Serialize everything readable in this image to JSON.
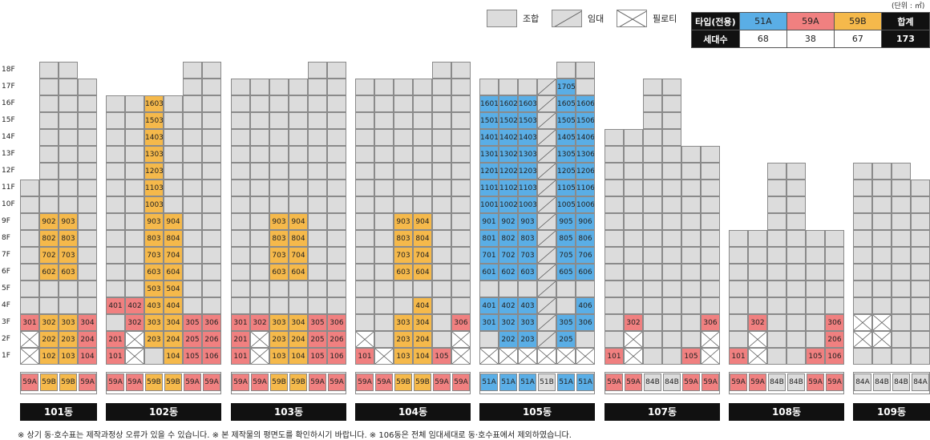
{
  "unit": "(단위 : ㎡)",
  "legend": {
    "union": "조합",
    "rental": "임대",
    "piloti": "필로티"
  },
  "summary": {
    "type_label": "타입(전용)",
    "count_label": "세대수",
    "total_label": "합계",
    "types": [
      {
        "name": "51A",
        "count": "68",
        "color": "#5aaee6"
      },
      {
        "name": "59A",
        "count": "38",
        "color": "#f08080"
      },
      {
        "name": "59B",
        "count": "67",
        "color": "#f5b94b"
      }
    ],
    "total": "173"
  },
  "floors": [
    "18F",
    "17F",
    "16F",
    "15F",
    "14F",
    "13F",
    "12F",
    "11F",
    "10F",
    "9F",
    "8F",
    "7F",
    "6F",
    "5F",
    "4F",
    "3F",
    "2F",
    "1F"
  ],
  "buildings": [
    {
      "name": "101동",
      "types": [
        "59A",
        "59B",
        "59B",
        "59A"
      ],
      "type_colors": [
        "b",
        "c",
        "c",
        "b"
      ],
      "heights": [
        11,
        18,
        18,
        17
      ],
      "units": {
        "3-1": [
          "301",
          "b"
        ],
        "3-2": [
          "302",
          "c"
        ],
        "3-3": [
          "303",
          "c"
        ],
        "3-4": [
          "304",
          "b"
        ],
        "2-2": [
          "202",
          "c"
        ],
        "2-3": [
          "203",
          "c"
        ],
        "2-4": [
          "204",
          "b"
        ],
        "1-2": [
          "102",
          "c"
        ],
        "1-3": [
          "103",
          "c"
        ],
        "1-4": [
          "104",
          "b"
        ],
        "9-2": [
          "902",
          "c"
        ],
        "9-3": [
          "903",
          "c"
        ],
        "8-2": [
          "802",
          "c"
        ],
        "8-3": [
          "803",
          "c"
        ],
        "7-2": [
          "702",
          "c"
        ],
        "7-3": [
          "703",
          "c"
        ],
        "6-2": [
          "602",
          "c"
        ],
        "6-3": [
          "603",
          "c"
        ]
      },
      "piloti": [
        "2-1",
        "1-1"
      ],
      "rental": []
    },
    {
      "name": "102동",
      "types": [
        "59A",
        "59A",
        "59B",
        "59B",
        "59A",
        "59A"
      ],
      "type_colors": [
        "b",
        "b",
        "c",
        "c",
        "b",
        "b"
      ],
      "heights": [
        16,
        16,
        16,
        16,
        18,
        18
      ],
      "units": {
        "16-3": [
          "1603",
          "c"
        ],
        "15-3": [
          "1503",
          "c"
        ],
        "14-3": [
          "1403",
          "c"
        ],
        "13-3": [
          "1303",
          "c"
        ],
        "12-3": [
          "1203",
          "c"
        ],
        "11-3": [
          "1103",
          "c"
        ],
        "10-3": [
          "1003",
          "c"
        ],
        "9-3": [
          "903",
          "c"
        ],
        "9-4": [
          "904",
          "c"
        ],
        "8-3": [
          "803",
          "c"
        ],
        "8-4": [
          "804",
          "c"
        ],
        "7-3": [
          "703",
          "c"
        ],
        "7-4": [
          "704",
          "c"
        ],
        "6-3": [
          "603",
          "c"
        ],
        "6-4": [
          "604",
          "c"
        ],
        "5-3": [
          "503",
          "c"
        ],
        "5-4": [
          "504",
          "c"
        ],
        "4-1": [
          "401",
          "b"
        ],
        "4-2": [
          "402",
          "b"
        ],
        "4-3": [
          "403",
          "c"
        ],
        "4-4": [
          "404",
          "c"
        ],
        "3-2": [
          "302",
          "b"
        ],
        "3-3": [
          "303",
          "c"
        ],
        "3-4": [
          "304",
          "c"
        ],
        "3-5": [
          "305",
          "b"
        ],
        "3-6": [
          "306",
          "b"
        ],
        "2-1": [
          "201",
          "b"
        ],
        "2-3": [
          "203",
          "c"
        ],
        "2-4": [
          "204",
          "c"
        ],
        "2-5": [
          "205",
          "b"
        ],
        "2-6": [
          "206",
          "b"
        ],
        "1-1": [
          "101",
          "b"
        ],
        "1-4": [
          "104",
          "c"
        ],
        "1-5": [
          "105",
          "b"
        ],
        "1-6": [
          "106",
          "b"
        ]
      },
      "piloti": [
        "2-2",
        "1-2"
      ],
      "rental": []
    },
    {
      "name": "103동",
      "types": [
        "59A",
        "59A",
        "59B",
        "59B",
        "59A",
        "59A"
      ],
      "type_colors": [
        "b",
        "b",
        "c",
        "c",
        "b",
        "b"
      ],
      "heights": [
        17,
        17,
        17,
        17,
        18,
        18
      ],
      "units": {
        "9-3": [
          "903",
          "c"
        ],
        "9-4": [
          "904",
          "c"
        ],
        "8-3": [
          "803",
          "c"
        ],
        "8-4": [
          "804",
          "c"
        ],
        "7-3": [
          "703",
          "c"
        ],
        "7-4": [
          "704",
          "c"
        ],
        "6-3": [
          "603",
          "c"
        ],
        "6-4": [
          "604",
          "c"
        ],
        "3-1": [
          "301",
          "b"
        ],
        "3-2": [
          "302",
          "b"
        ],
        "3-3": [
          "303",
          "c"
        ],
        "3-4": [
          "304",
          "c"
        ],
        "3-5": [
          "305",
          "b"
        ],
        "3-6": [
          "306",
          "b"
        ],
        "2-1": [
          "201",
          "b"
        ],
        "2-3": [
          "203",
          "c"
        ],
        "2-4": [
          "204",
          "c"
        ],
        "2-5": [
          "205",
          "b"
        ],
        "2-6": [
          "206",
          "b"
        ],
        "1-1": [
          "101",
          "b"
        ],
        "1-3": [
          "103",
          "c"
        ],
        "1-4": [
          "104",
          "c"
        ],
        "1-5": [
          "105",
          "b"
        ],
        "1-6": [
          "106",
          "b"
        ]
      },
      "piloti": [
        "2-2",
        "1-2"
      ],
      "rental": []
    },
    {
      "name": "104동",
      "types": [
        "59A",
        "59A",
        "59B",
        "59B",
        "59A",
        "59A"
      ],
      "type_colors": [
        "b",
        "b",
        "c",
        "c",
        "b",
        "b"
      ],
      "heights": [
        17,
        17,
        17,
        17,
        18,
        18
      ],
      "units": {
        "9-3": [
          "903",
          "c"
        ],
        "9-4": [
          "904",
          "c"
        ],
        "8-3": [
          "803",
          "c"
        ],
        "8-4": [
          "804",
          "c"
        ],
        "7-3": [
          "703",
          "c"
        ],
        "7-4": [
          "704",
          "c"
        ],
        "6-3": [
          "603",
          "c"
        ],
        "6-4": [
          "604",
          "c"
        ],
        "4-4": [
          "404",
          "c"
        ],
        "3-3": [
          "303",
          "c"
        ],
        "3-4": [
          "304",
          "c"
        ],
        "3-6": [
          "306",
          "b"
        ],
        "2-3": [
          "203",
          "c"
        ],
        "2-4": [
          "204",
          "c"
        ],
        "1-1": [
          "101",
          "b"
        ],
        "1-3": [
          "103",
          "c"
        ],
        "1-4": [
          "104",
          "c"
        ],
        "1-5": [
          "105",
          "b"
        ]
      },
      "piloti": [
        "2-1",
        "2-6",
        "1-2",
        "1-6"
      ],
      "rental": []
    },
    {
      "name": "105동",
      "types": [
        "51A",
        "51A",
        "51A",
        "51B",
        "51A",
        "51A"
      ],
      "type_colors": [
        "a",
        "a",
        "a",
        "g",
        "a",
        "a"
      ],
      "heights": [
        17,
        17,
        17,
        17,
        18,
        18
      ],
      "units": {
        "17-5": [
          "1705",
          "a"
        ],
        "16-1": [
          "1601",
          "a"
        ],
        "16-2": [
          "1602",
          "a"
        ],
        "16-3": [
          "1603",
          "a"
        ],
        "16-5": [
          "1605",
          "a"
        ],
        "16-6": [
          "1606",
          "a"
        ],
        "15-1": [
          "1501",
          "a"
        ],
        "15-2": [
          "1502",
          "a"
        ],
        "15-3": [
          "1503",
          "a"
        ],
        "15-5": [
          "1505",
          "a"
        ],
        "15-6": [
          "1506",
          "a"
        ],
        "14-1": [
          "1401",
          "a"
        ],
        "14-2": [
          "1402",
          "a"
        ],
        "14-3": [
          "1403",
          "a"
        ],
        "14-5": [
          "1405",
          "a"
        ],
        "14-6": [
          "1406",
          "a"
        ],
        "13-1": [
          "1301",
          "a"
        ],
        "13-2": [
          "1302",
          "a"
        ],
        "13-3": [
          "1303",
          "a"
        ],
        "13-5": [
          "1305",
          "a"
        ],
        "13-6": [
          "1306",
          "a"
        ],
        "12-1": [
          "1201",
          "a"
        ],
        "12-2": [
          "1202",
          "a"
        ],
        "12-3": [
          "1203",
          "a"
        ],
        "12-5": [
          "1205",
          "a"
        ],
        "12-6": [
          "1206",
          "a"
        ],
        "11-1": [
          "1101",
          "a"
        ],
        "11-2": [
          "1102",
          "a"
        ],
        "11-3": [
          "1103",
          "a"
        ],
        "11-5": [
          "1105",
          "a"
        ],
        "11-6": [
          "1106",
          "a"
        ],
        "10-1": [
          "1001",
          "a"
        ],
        "10-2": [
          "1002",
          "a"
        ],
        "10-3": [
          "1003",
          "a"
        ],
        "10-5": [
          "1005",
          "a"
        ],
        "10-6": [
          "1006",
          "a"
        ],
        "9-1": [
          "901",
          "a"
        ],
        "9-2": [
          "902",
          "a"
        ],
        "9-3": [
          "903",
          "a"
        ],
        "9-5": [
          "905",
          "a"
        ],
        "9-6": [
          "906",
          "a"
        ],
        "8-1": [
          "801",
          "a"
        ],
        "8-2": [
          "802",
          "a"
        ],
        "8-3": [
          "803",
          "a"
        ],
        "8-5": [
          "805",
          "a"
        ],
        "8-6": [
          "806",
          "a"
        ],
        "7-1": [
          "701",
          "a"
        ],
        "7-2": [
          "702",
          "a"
        ],
        "7-3": [
          "703",
          "a"
        ],
        "7-5": [
          "705",
          "a"
        ],
        "7-6": [
          "706",
          "a"
        ],
        "6-1": [
          "601",
          "a"
        ],
        "6-2": [
          "602",
          "a"
        ],
        "6-3": [
          "603",
          "a"
        ],
        "6-5": [
          "605",
          "a"
        ],
        "6-6": [
          "606",
          "a"
        ],
        "4-1": [
          "401",
          "a"
        ],
        "4-2": [
          "402",
          "a"
        ],
        "4-3": [
          "403",
          "a"
        ],
        "4-6": [
          "406",
          "a"
        ],
        "3-1": [
          "301",
          "a"
        ],
        "3-2": [
          "302",
          "a"
        ],
        "3-3": [
          "303",
          "a"
        ],
        "3-5": [
          "305",
          "a"
        ],
        "3-6": [
          "306",
          "a"
        ],
        "2-2": [
          "202",
          "a"
        ],
        "2-3": [
          "203",
          "a"
        ],
        "2-5": [
          "205",
          "a"
        ]
      },
      "piloti": [
        "1-1",
        "1-2",
        "1-3",
        "1-4",
        "1-5",
        "1-6"
      ],
      "rental": [
        "17-4",
        "16-4",
        "15-4",
        "14-4",
        "13-4",
        "12-4",
        "11-4",
        "10-4",
        "9-4",
        "8-4",
        "7-4",
        "6-4",
        "5-4",
        "4-4",
        "3-4",
        "2-4"
      ]
    },
    {
      "name": "107동",
      "types": [
        "59A",
        "59A",
        "84B",
        "84B",
        "59A",
        "59A"
      ],
      "type_colors": [
        "b",
        "b",
        "g",
        "g",
        "b",
        "b"
      ],
      "heights": [
        14,
        14,
        17,
        17,
        13,
        13
      ],
      "units": {
        "3-2": [
          "302",
          "b"
        ],
        "3-6": [
          "306",
          "b"
        ],
        "1-1": [
          "101",
          "b"
        ],
        "1-5": [
          "105",
          "b"
        ]
      },
      "piloti": [
        "2-2",
        "1-2",
        "2-6",
        "1-6"
      ],
      "rental": []
    },
    {
      "name": "108동",
      "types": [
        "59A",
        "59A",
        "84B",
        "84B",
        "59A",
        "59A"
      ],
      "type_colors": [
        "b",
        "b",
        "g",
        "g",
        "b",
        "b"
      ],
      "heights": [
        8,
        8,
        12,
        12,
        8,
        8
      ],
      "units": {
        "3-2": [
          "302",
          "b"
        ],
        "3-6": [
          "306",
          "b"
        ],
        "2-6": [
          "206",
          "b"
        ],
        "1-1": [
          "101",
          "b"
        ],
        "1-5": [
          "105",
          "b"
        ],
        "1-6": [
          "106",
          "b"
        ]
      },
      "piloti": [
        "2-2",
        "1-2"
      ],
      "rental": []
    },
    {
      "name": "109동",
      "types": [
        "84A",
        "84B",
        "84B",
        "84A"
      ],
      "type_colors": [
        "g",
        "g",
        "g",
        "g"
      ],
      "heights": [
        12,
        12,
        12,
        11
      ],
      "units": {},
      "piloti": [
        "3-1",
        "3-2",
        "2-1",
        "2-2"
      ],
      "rental": []
    }
  ],
  "footnote": "※ 상기 동·호수표는 제작과정상 오류가 있을 수 있습니다.  ※ 본 제작물의 평면도를 확인하시기 바랍니다.  ※ 106동은 전체 임대세대로 동·호수표에서 제외하였습니다."
}
